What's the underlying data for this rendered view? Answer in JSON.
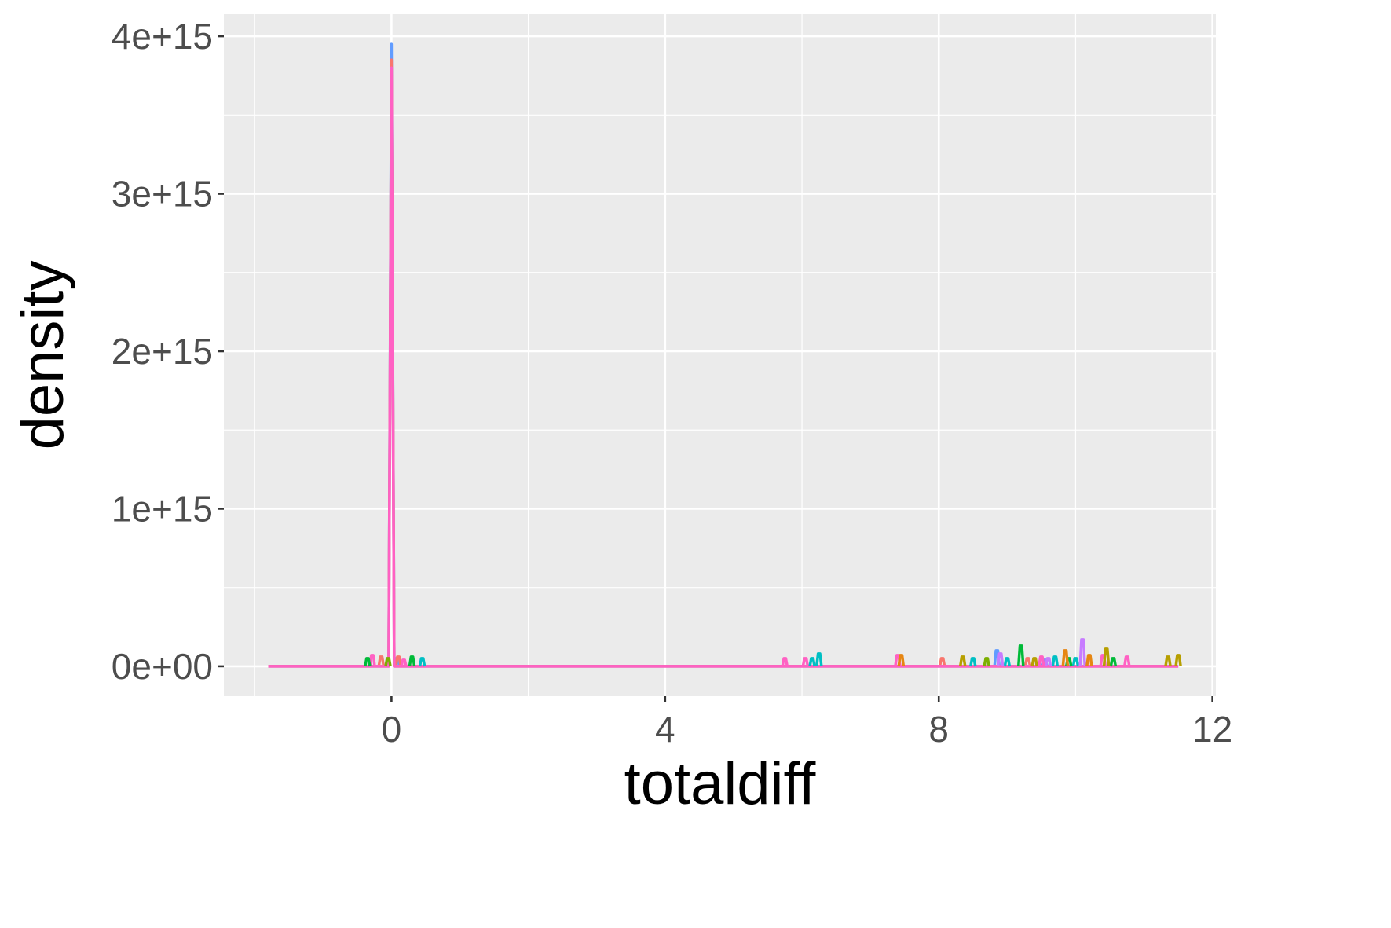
{
  "chart_data": {
    "type": "line",
    "title": "",
    "xlabel": "totaldiff",
    "ylabel": "density",
    "xlim": [
      -2.45,
      12.05
    ],
    "ylim": [
      -190000000000000.0,
      4140000000000000.0
    ],
    "x_ticks": [
      0,
      4,
      8,
      12
    ],
    "x_tick_labels": [
      "0",
      "4",
      "8",
      "12"
    ],
    "x_minor": [
      -2,
      2,
      6,
      10
    ],
    "y_ticks": [
      0,
      1000000000000000.0,
      2000000000000000.0,
      3000000000000000.0,
      4000000000000000.0
    ],
    "y_tick_labels": [
      "0e+00",
      "1e+15",
      "2e+15",
      "3e+15",
      "4e+15"
    ],
    "y_minor": [
      500000000000000.0,
      1500000000000000.0,
      2500000000000000.0,
      3500000000000000.0
    ],
    "grid": true,
    "legend": "none",
    "background": "#ebebeb",
    "gridline_color": "#ffffff",
    "baseline": {
      "x": [
        -1.8,
        11.5
      ],
      "y": 0
    },
    "series": [
      {
        "color": "#619cff",
        "points": [
          [
            -1.8,
            0
          ],
          [
            -0.04,
            0
          ],
          [
            0.0,
            3950000000000000.0
          ],
          [
            0.04,
            0
          ],
          [
            11.5,
            0
          ]
        ],
        "bumps": [
          [
            0.08,
            50000000000000.0
          ],
          [
            8.85,
            100000000000000.0
          ],
          [
            9.55,
            40000000000000.0
          ]
        ]
      },
      {
        "color": "#f8766d",
        "points": [
          [
            -1.8,
            0
          ],
          [
            -0.04,
            0
          ],
          [
            0.0,
            3850000000000000.0
          ],
          [
            0.04,
            0
          ],
          [
            11.5,
            0
          ]
        ],
        "bumps": [
          [
            -0.15,
            60000000000000.0
          ],
          [
            0.1,
            60000000000000.0
          ],
          [
            8.05,
            50000000000000.0
          ],
          [
            9.3,
            50000000000000.0
          ]
        ]
      },
      {
        "color": "#ff61c3",
        "points": [
          [
            -1.8,
            0
          ],
          [
            -0.04,
            0
          ],
          [
            0.0,
            3800000000000000.0
          ],
          [
            0.04,
            0
          ],
          [
            11.5,
            0
          ]
        ],
        "bumps": [
          [
            -0.28,
            70000000000000.0
          ],
          [
            0.18,
            40000000000000.0
          ],
          [
            5.75,
            50000000000000.0
          ],
          [
            6.05,
            50000000000000.0
          ],
          [
            7.4,
            70000000000000.0
          ],
          [
            9.5,
            60000000000000.0
          ],
          [
            10.4,
            70000000000000.0
          ],
          [
            10.75,
            60000000000000.0
          ]
        ]
      },
      {
        "color": "#00bfc4",
        "points": [],
        "bumps": [
          [
            0.45,
            50000000000000.0
          ],
          [
            6.15,
            50000000000000.0
          ],
          [
            6.25,
            80000000000000.0
          ],
          [
            8.5,
            50000000000000.0
          ],
          [
            9.0,
            50000000000000.0
          ],
          [
            9.7,
            60000000000000.0
          ],
          [
            10.0,
            50000000000000.0
          ]
        ]
      },
      {
        "color": "#00ba38",
        "points": [],
        "bumps": [
          [
            -0.35,
            50000000000000.0
          ],
          [
            0.3,
            60000000000000.0
          ],
          [
            9.2,
            130000000000000.0
          ],
          [
            9.9,
            50000000000000.0
          ],
          [
            10.55,
            50000000000000.0
          ]
        ]
      },
      {
        "color": "#c77cff",
        "points": [],
        "bumps": [
          [
            10.1,
            170000000000000.0
          ],
          [
            8.9,
            80000000000000.0
          ],
          [
            9.6,
            50000000000000.0
          ]
        ]
      },
      {
        "color": "#e68613",
        "points": [],
        "bumps": [
          [
            7.45,
            70000000000000.0
          ],
          [
            9.85,
            100000000000000.0
          ],
          [
            10.2,
            70000000000000.0
          ]
        ]
      },
      {
        "color": "#b79f00",
        "points": [],
        "bumps": [
          [
            8.35,
            60000000000000.0
          ],
          [
            9.4,
            50000000000000.0
          ],
          [
            10.45,
            110000000000000.0
          ],
          [
            11.35,
            60000000000000.0
          ],
          [
            11.5,
            70000000000000.0
          ]
        ]
      },
      {
        "color": "#7cae00",
        "points": [],
        "bumps": [
          [
            -0.05,
            50000000000000.0
          ],
          [
            8.7,
            50000000000000.0
          ]
        ]
      }
    ]
  }
}
